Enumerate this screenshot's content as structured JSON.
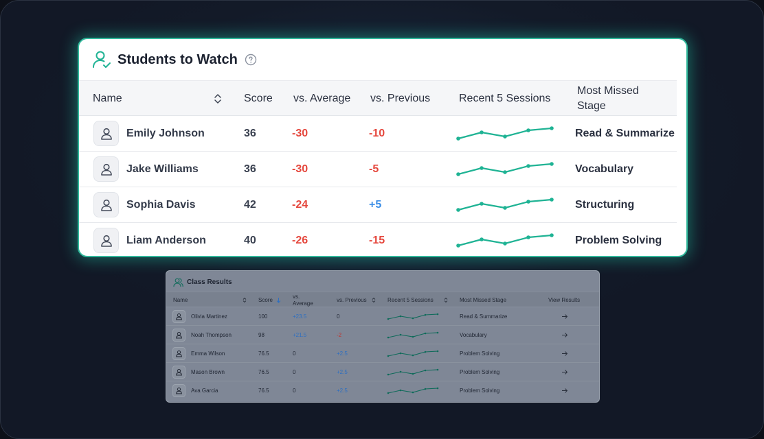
{
  "main_card": {
    "title": "Students to Watch",
    "icons": {
      "title": "user-check-icon",
      "help": "help-circle-icon",
      "sort": "sort-updown-icon",
      "avatar": "user-icon"
    },
    "headers": {
      "name": "Name",
      "score": "Score",
      "vs_average": "vs. Average",
      "vs_previous": "vs. Previous",
      "recent": "Recent 5 Sessions",
      "stage_line1": "Most Missed",
      "stage_line2": "Stage"
    },
    "rows": [
      {
        "name": "Emily Johnson",
        "score": "36",
        "vs_average": "-30",
        "vs_previous": "-10",
        "stage": "Read & Summarize"
      },
      {
        "name": "Jake Williams",
        "score": "36",
        "vs_average": "-30",
        "vs_previous": "-5",
        "stage": "Vocabulary"
      },
      {
        "name": "Sophia Davis",
        "score": "42",
        "vs_average": "-24",
        "vs_previous": "+5",
        "stage": "Structuring"
      },
      {
        "name": "Liam Anderson",
        "score": "40",
        "vs_average": "-26",
        "vs_previous": "-15",
        "stage": "Problem Solving"
      }
    ]
  },
  "sub_card": {
    "title": "Class Results",
    "icons": {
      "title": "users-icon",
      "arrow": "arrow-right-icon"
    },
    "headers": {
      "name": "Name",
      "score": "Score",
      "vs_average_1": "vs.",
      "vs_average_2": "Average",
      "vs_previous": "vs. Previous",
      "recent": "Recent 5 Sessions",
      "stage": "Most Missed Stage",
      "view": "View Results"
    },
    "rows": [
      {
        "name": "Olivia Martinez",
        "score": "100",
        "vs_average": "+23.5",
        "vs_previous": "0",
        "stage": "Read & Summarize"
      },
      {
        "name": "Noah Thompson",
        "score": "98",
        "vs_average": "+21.5",
        "vs_previous": "-2",
        "stage": "Vocabulary"
      },
      {
        "name": "Emma Wilson",
        "score": "76.5",
        "vs_average": "0",
        "vs_previous": "+2.5",
        "stage": "Problem Solving"
      },
      {
        "name": "Mason Brown",
        "score": "76.5",
        "vs_average": "0",
        "vs_previous": "+2.5",
        "stage": "Problem Solving"
      },
      {
        "name": "Ava Garcia",
        "score": "76.5",
        "vs_average": "0",
        "vs_previous": "+2.5",
        "stage": "Problem Solving"
      }
    ]
  },
  "colors": {
    "accent": "#1fb394",
    "negative": "#e5473d",
    "positive": "#3b8ee6"
  }
}
